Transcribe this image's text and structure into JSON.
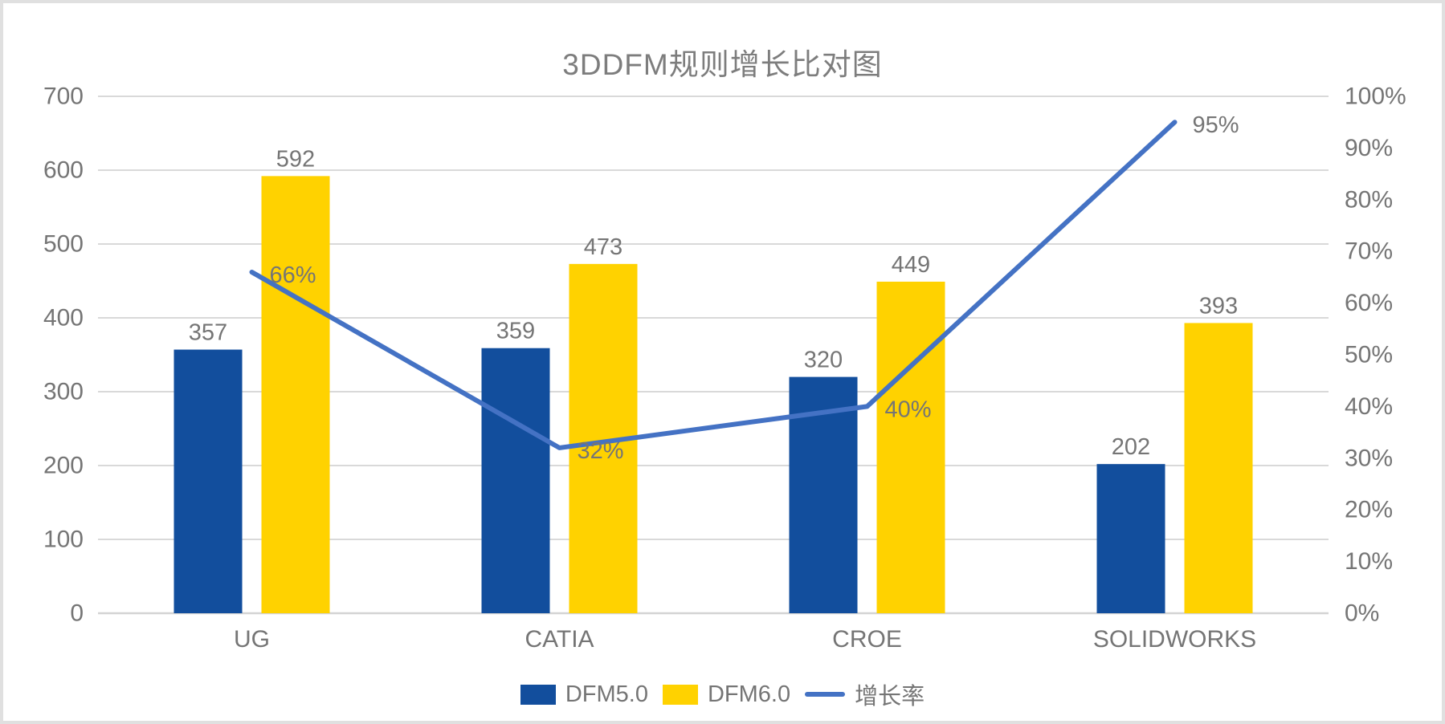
{
  "chart_data": {
    "type": "combo",
    "title": "3DDFM规则增长比对图",
    "categories": [
      "UG",
      "CATIA",
      "CROE",
      "SOLIDWORKS"
    ],
    "series": [
      {
        "name": "DFM5.0",
        "type": "bar",
        "axis": "left",
        "color": "#124E9D",
        "values": [
          357,
          359,
          320,
          202
        ],
        "labels": [
          "357",
          "359",
          "320",
          "202"
        ]
      },
      {
        "name": "DFM6.0",
        "type": "bar",
        "axis": "left",
        "color": "#FFD200",
        "values": [
          592,
          473,
          449,
          393
        ],
        "labels": [
          "592",
          "473",
          "449",
          "393"
        ]
      },
      {
        "name": "增长率",
        "type": "line",
        "axis": "right",
        "color": "#4472C4",
        "values": [
          66,
          32,
          40,
          95
        ],
        "labels": [
          "66%",
          "32%",
          "40%",
          "95%"
        ]
      }
    ],
    "left_axis": {
      "min": 0,
      "max": 700,
      "step": 100,
      "ticks": [
        "0",
        "100",
        "200",
        "300",
        "400",
        "500",
        "600",
        "700"
      ]
    },
    "right_axis": {
      "min": 0,
      "max": 100,
      "step": 10,
      "ticks": [
        "0%",
        "10%",
        "20%",
        "30%",
        "40%",
        "50%",
        "60%",
        "70%",
        "80%",
        "90%",
        "100%"
      ]
    },
    "grid": true,
    "legend_position": "bottom"
  },
  "colors": {
    "gridline": "#D9D9D9",
    "axis_line": "#D3D3D3",
    "text": "#757575",
    "background": "#FFFFFF",
    "frame": "#E0E0E0"
  }
}
